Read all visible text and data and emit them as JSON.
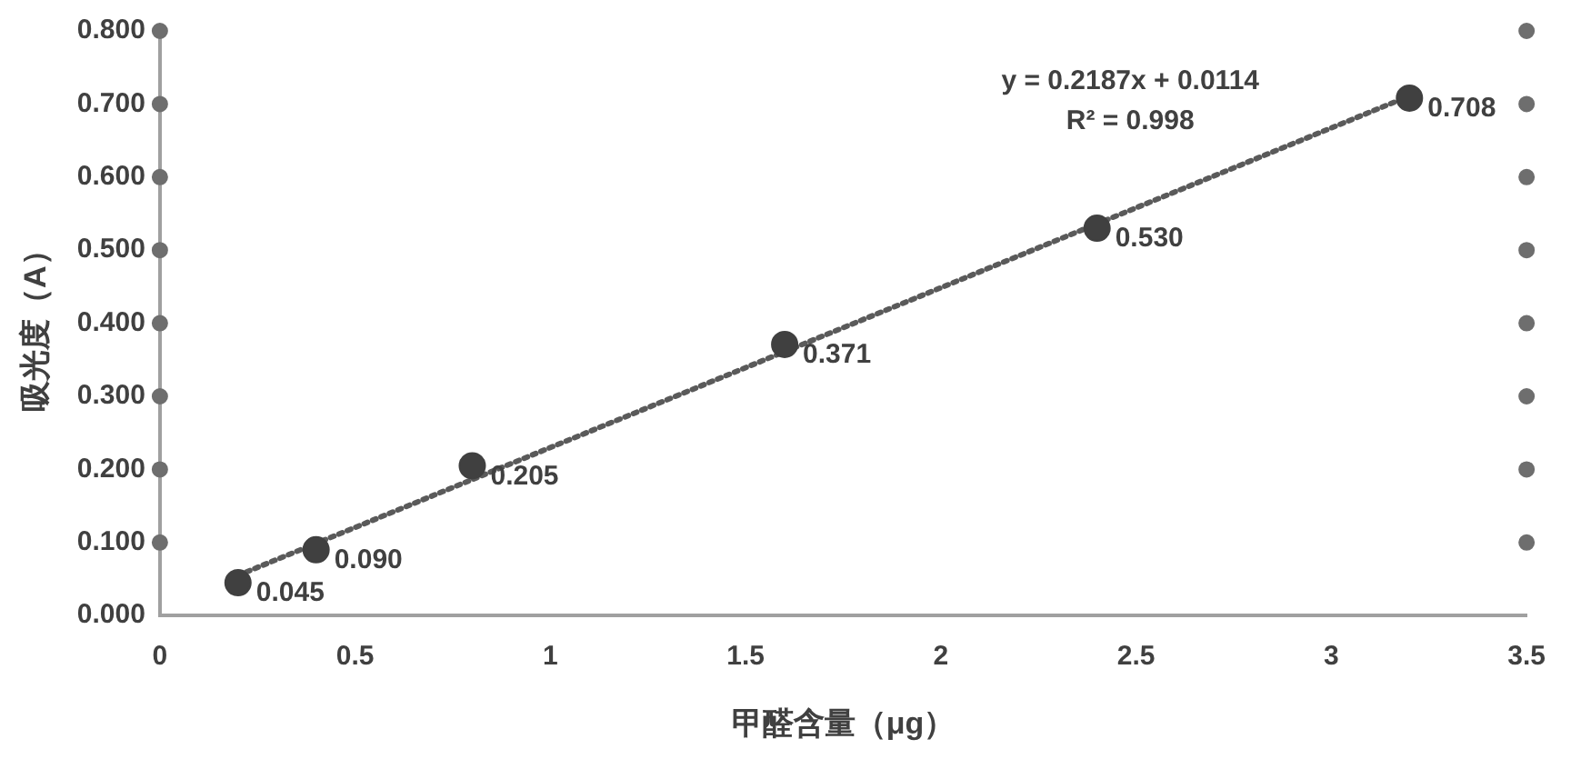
{
  "chart_data": {
    "type": "scatter",
    "xlabel": "甲醛含量（μg）",
    "ylabel": "吸光度（A）",
    "annotations": [
      "y = 0.2187x + 0.0114",
      "R² = 0.998"
    ],
    "series": [
      {
        "type": "scatter",
        "color": "#404040",
        "x": [
          0.2,
          0.4,
          0.8,
          1.6,
          2.4,
          3.2
        ],
        "values": [
          0.045,
          0.09,
          0.205,
          0.371,
          0.53,
          0.708
        ],
        "value_labels": [
          "0.045",
          "0.090",
          "0.205",
          "0.371",
          "0.530",
          "0.708"
        ],
        "marker": "circle"
      },
      {
        "type": "line",
        "color": "#5a5a5a",
        "x": [
          0.2,
          3.2
        ],
        "values": [
          0.055,
          0.711
        ],
        "line_style": "dotted",
        "marker": "none"
      },
      {
        "type": "scatter",
        "color": "#6e6e6e",
        "x": [
          0,
          0,
          0,
          0,
          0,
          0,
          0,
          0,
          3.5,
          3.5,
          3.5,
          3.5,
          3.5,
          3.5,
          3.5,
          3.5
        ],
        "values": [
          0.1,
          0.2,
          0.3,
          0.4,
          0.5,
          0.6,
          0.7,
          0.8,
          0.1,
          0.2,
          0.3,
          0.4,
          0.5,
          0.6,
          0.7,
          0.8
        ],
        "marker": "circle"
      }
    ],
    "xlim": [
      0,
      3.5
    ],
    "xticks": [
      0,
      0.5,
      1,
      1.5,
      2,
      2.5,
      3,
      3.5
    ],
    "ylim": [
      0,
      0.8
    ],
    "yticks": [
      {
        "value": 0,
        "label": "0.000"
      },
      {
        "value": 0.1,
        "label": "0.100"
      },
      {
        "value": 0.2,
        "label": "0.200"
      },
      {
        "value": 0.3,
        "label": "0.300"
      },
      {
        "value": 0.4,
        "label": "0.400"
      },
      {
        "value": 0.5,
        "label": "0.500"
      },
      {
        "value": 0.6,
        "label": "0.600"
      },
      {
        "value": 0.7,
        "label": "0.700"
      },
      {
        "value": 0.8,
        "label": "0.800"
      }
    ],
    "grid": false,
    "legend": false
  }
}
